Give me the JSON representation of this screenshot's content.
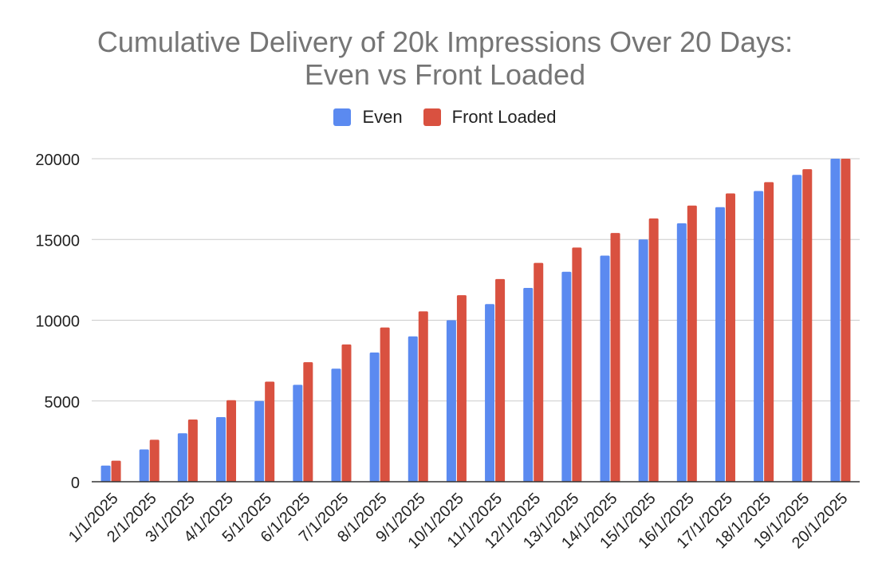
{
  "chart_data": {
    "type": "bar",
    "title_lines": [
      "Cumulative Delivery of 20k Impressions Over 20 Days:",
      "Even vs Front Loaded"
    ],
    "title": "Cumulative Delivery of 20k Impressions Over 20 Days: Even vs Front Loaded",
    "xlabel": "",
    "ylabel": "",
    "categories": [
      "1/1/2025",
      "2/1/2025",
      "3/1/2025",
      "4/1/2025",
      "5/1/2025",
      "6/1/2025",
      "7/1/2025",
      "8/1/2025",
      "9/1/2025",
      "10/1/2025",
      "11/1/2025",
      "12/1/2025",
      "13/1/2025",
      "14/1/2025",
      "15/1/2025",
      "16/1/2025",
      "17/1/2025",
      "18/1/2025",
      "19/1/2025",
      "20/1/2025"
    ],
    "series": [
      {
        "name": "Even",
        "color": "#5B8AF0",
        "values": [
          1000,
          2000,
          3000,
          4000,
          5000,
          6000,
          7000,
          8000,
          9000,
          10000,
          11000,
          12000,
          13000,
          14000,
          15000,
          16000,
          17000,
          18000,
          19000,
          20000
        ]
      },
      {
        "name": "Front Loaded",
        "color": "#D95140",
        "values": [
          1300,
          2600,
          3850,
          5050,
          6200,
          7400,
          8500,
          9550,
          10550,
          11550,
          12550,
          13550,
          14500,
          15400,
          16300,
          17100,
          17850,
          18550,
          19350,
          20000
        ]
      }
    ],
    "ylim": [
      0,
      20000
    ],
    "yticks": [
      0,
      5000,
      10000,
      15000,
      20000
    ],
    "grid": true,
    "legend_position": "top-center"
  }
}
